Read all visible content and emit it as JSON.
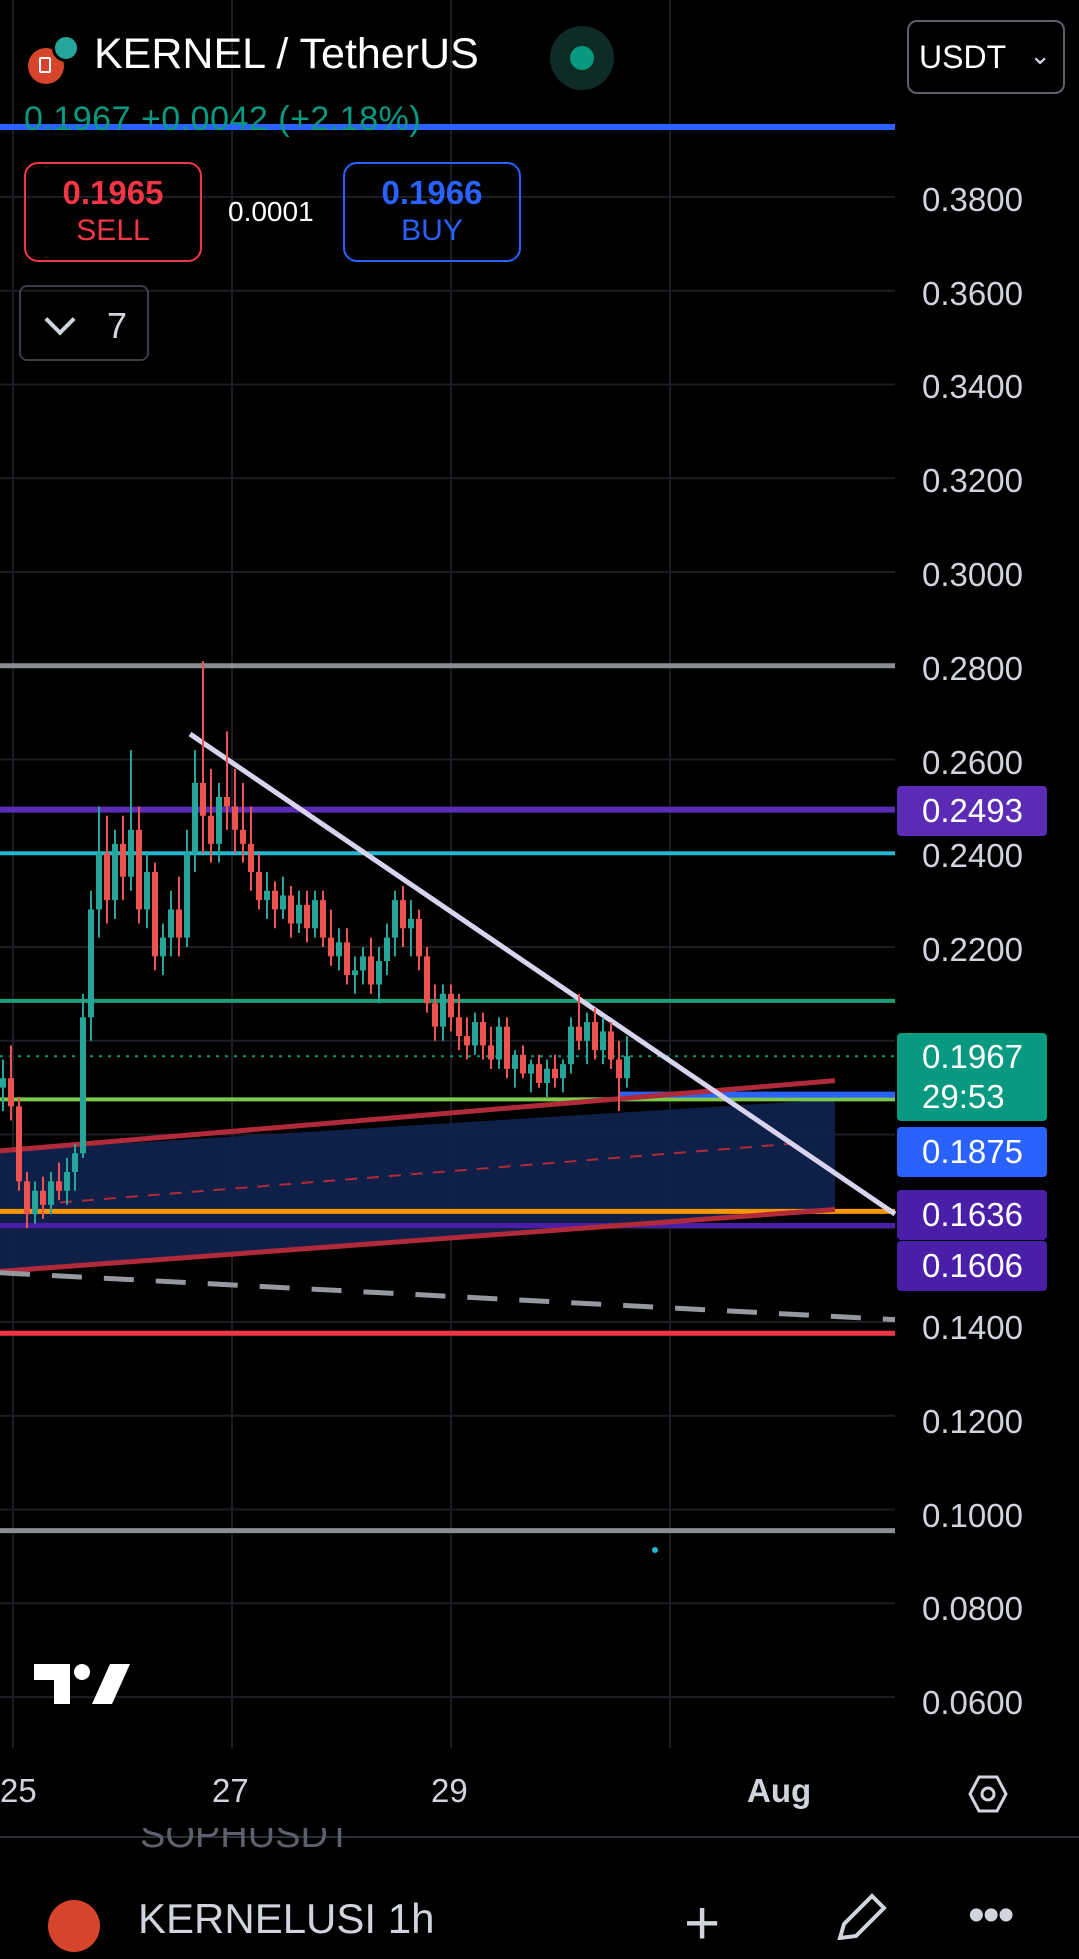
{
  "header": {
    "symbol_title": "KERNEL / TetherUS",
    "last_price": "0.1967",
    "change": "+0.0042 (+2.18%)",
    "currency": "USDT",
    "sell_price": "0.1965",
    "sell_label": "SELL",
    "spread": "0.0001",
    "buy_price": "0.1966",
    "buy_label": "BUY",
    "indicator_count": "7"
  },
  "price_axis": {
    "labels": [
      "0.3800",
      "0.3600",
      "0.3400",
      "0.3200",
      "0.3000",
      "0.2800",
      "0.2600",
      "0.2400",
      "0.2200",
      "0.1400",
      "0.1200",
      "0.1000",
      "0.0800",
      "0.0600"
    ],
    "badges": [
      {
        "text": "0.2493",
        "color": "#5b2bb5"
      },
      {
        "text": "0.1967",
        "sub": "29:53",
        "color": "#089981"
      },
      {
        "text": "0.1875",
        "color": "#2962ff"
      },
      {
        "text": "0.1636",
        "color": "#4a1fa8"
      },
      {
        "text": "0.1606",
        "color": "#4a1fa8"
      }
    ]
  },
  "time_axis": {
    "labels": [
      "25",
      "27",
      "29",
      "Aug"
    ]
  },
  "colors": {
    "up": "#089981",
    "down": "#f23645",
    "accent": "#2962ff",
    "background": "#000000"
  },
  "bottom_bar": {
    "ghost_symbol": "SOPHUSDT",
    "symbol_interval": "KERNELUSI  1h",
    "plus_icon": "+",
    "more_icon": "•••"
  },
  "icons": [
    "exchange-logo-icon",
    "live-status-icon",
    "chevron-down-icon",
    "tradingview-logo-icon",
    "settings-hexagon-icon",
    "plus-icon",
    "pencil-icon",
    "more-icon"
  ]
}
